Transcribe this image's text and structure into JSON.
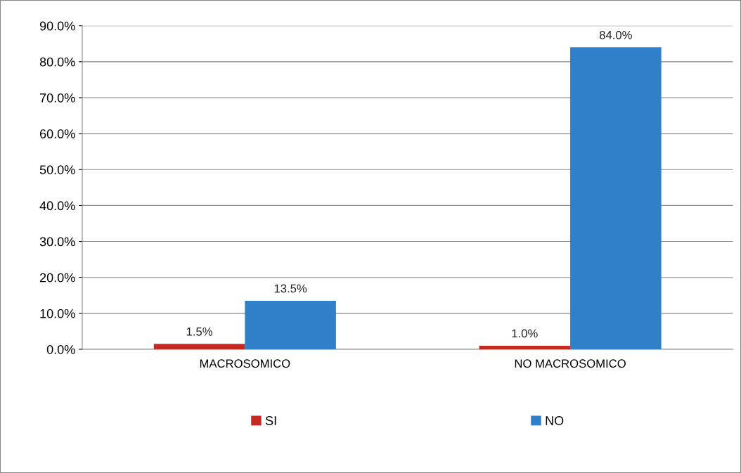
{
  "chart_data": {
    "type": "bar",
    "categories": [
      "MACROSOMICO",
      "NO MACROSOMICO"
    ],
    "series": [
      {
        "name": "SI",
        "color": "#c42a22",
        "values": [
          1.5,
          1.0
        ],
        "value_labels": [
          "1.5%",
          "1.0%"
        ]
      },
      {
        "name": "NO",
        "color": "#2f80c8",
        "values": [
          13.5,
          84.0
        ],
        "value_labels": [
          "13.5%",
          "84.0%"
        ]
      }
    ],
    "ylim": [
      0,
      90
    ],
    "yticks": [
      {
        "value": 0,
        "label": "0.0%"
      },
      {
        "value": 10,
        "label": "10.0%"
      },
      {
        "value": 20,
        "label": "20.0%"
      },
      {
        "value": 30,
        "label": "30.0%"
      },
      {
        "value": 40,
        "label": "40.0%"
      },
      {
        "value": 50,
        "label": "50.0%"
      },
      {
        "value": 60,
        "label": "60.0%"
      },
      {
        "value": 70,
        "label": "70.0%"
      },
      {
        "value": 80,
        "label": "80.0%"
      },
      {
        "value": 90,
        "label": "90.0%"
      }
    ],
    "grid": "y",
    "legend": "bottom"
  }
}
